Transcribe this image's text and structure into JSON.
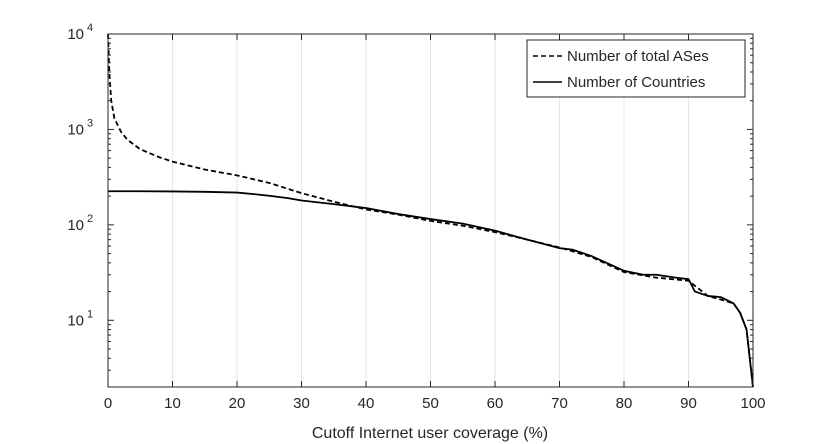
{
  "chart_data": {
    "type": "line",
    "title": "",
    "xlabel": "Cutoff Internet user coverage (%)",
    "ylabel": "",
    "xlim": [
      0,
      100
    ],
    "ylim": [
      2,
      10000
    ],
    "y_scale": "log",
    "x_ticks": [
      0,
      10,
      20,
      30,
      40,
      50,
      60,
      70,
      80,
      90,
      100
    ],
    "x_tick_labels": [
      "0",
      "10",
      "20",
      "30",
      "40",
      "50",
      "60",
      "70",
      "80",
      "90",
      "100"
    ],
    "y_ticks": [
      10,
      100,
      1000,
      10000
    ],
    "y_tick_labels": [
      {
        "base": "10",
        "exp": "1"
      },
      {
        "base": "10",
        "exp": "2"
      },
      {
        "base": "10",
        "exp": "3"
      },
      {
        "base": "10",
        "exp": "4"
      }
    ],
    "grid": {
      "x": true,
      "y": false
    },
    "legend": {
      "position": "top-right"
    },
    "series": [
      {
        "name": "Number of total ASes",
        "style": "dashed",
        "color": "#000000",
        "x": [
          0,
          0.2,
          0.5,
          1,
          2,
          3,
          5,
          8,
          10,
          15,
          20,
          25,
          30,
          35,
          40,
          45,
          50,
          55,
          60,
          65,
          70,
          75,
          80,
          85,
          90,
          93,
          95,
          97,
          98,
          99,
          99.5,
          100
        ],
        "y": [
          10000,
          4000,
          2000,
          1300,
          950,
          780,
          620,
          510,
          460,
          380,
          330,
          275,
          215,
          175,
          145,
          128,
          110,
          98,
          84,
          70,
          58,
          46,
          32,
          28,
          26,
          18,
          16.5,
          15,
          12,
          8,
          4,
          2
        ]
      },
      {
        "name": "Number of Countries",
        "style": "solid",
        "color": "#000000",
        "x": [
          0,
          5,
          10,
          15,
          20,
          22,
          25,
          28,
          30,
          35,
          40,
          45,
          50,
          55,
          60,
          65,
          70,
          72,
          75,
          78,
          80,
          83,
          85,
          88,
          90,
          91,
          93,
          95,
          97,
          98,
          99,
          99.5,
          100
        ],
        "y": [
          225,
          225,
          224,
          222,
          218,
          212,
          202,
          190,
          180,
          165,
          150,
          130,
          115,
          103,
          87,
          70,
          57,
          55,
          47,
          38,
          33,
          30,
          30,
          28,
          27,
          20,
          18,
          17.5,
          15,
          12,
          8,
          4,
          2
        ]
      }
    ]
  }
}
